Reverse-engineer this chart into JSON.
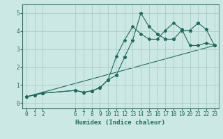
{
  "title": "",
  "xlabel": "Humidex (Indice chaleur)",
  "bg_color": "#cce8e4",
  "line_color": "#1a6b5e",
  "grid_color": "#aaccc8",
  "xlim": [
    -0.5,
    23.5
  ],
  "ylim": [
    -0.3,
    5.5
  ],
  "xticks": [
    0,
    1,
    2,
    6,
    7,
    8,
    9,
    10,
    11,
    12,
    13,
    14,
    15,
    16,
    17,
    18,
    19,
    20,
    21,
    22,
    23
  ],
  "yticks": [
    0,
    1,
    2,
    3,
    4,
    5
  ],
  "line1_x": [
    0,
    1,
    2,
    6,
    7,
    8,
    9,
    10,
    11,
    12,
    13,
    14,
    15,
    16,
    17,
    18,
    19,
    20,
    21,
    22,
    23
  ],
  "line1_y": [
    0.35,
    0.45,
    0.55,
    0.7,
    0.6,
    0.68,
    0.85,
    1.3,
    1.55,
    2.55,
    3.5,
    5.0,
    4.25,
    3.85,
    3.55,
    3.55,
    4.05,
    4.05,
    4.45,
    4.1,
    3.2
  ],
  "line2_x": [
    0,
    23
  ],
  "line2_y": [
    0.35,
    3.2
  ],
  "line3_x": [
    0,
    1,
    2,
    6,
    7,
    8,
    9,
    10,
    11,
    12,
    13,
    14,
    15,
    16,
    17,
    18,
    19,
    20,
    21,
    22,
    23
  ],
  "line3_y": [
    0.35,
    0.45,
    0.55,
    0.7,
    0.6,
    0.68,
    0.85,
    1.3,
    2.6,
    3.5,
    4.25,
    3.85,
    3.55,
    3.55,
    4.05,
    4.45,
    4.1,
    3.2,
    3.2,
    3.35,
    3.2
  ]
}
